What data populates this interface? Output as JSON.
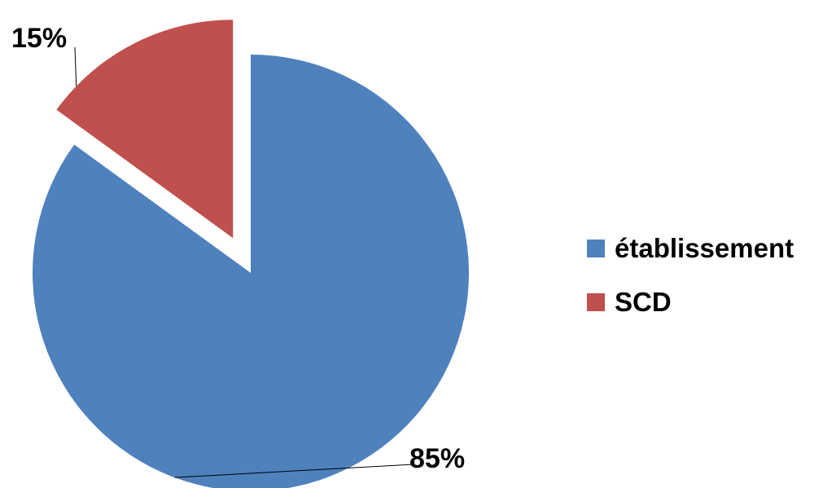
{
  "chart_data": {
    "type": "pie",
    "title": "",
    "slices": [
      {
        "label": "établissement",
        "value": 85,
        "display": "85%",
        "color": "#4f81bd",
        "exploded": false
      },
      {
        "label": "SCD",
        "value": 15,
        "display": "15%",
        "color": "#c0504d",
        "exploded": true
      }
    ],
    "legend_position": "right"
  }
}
